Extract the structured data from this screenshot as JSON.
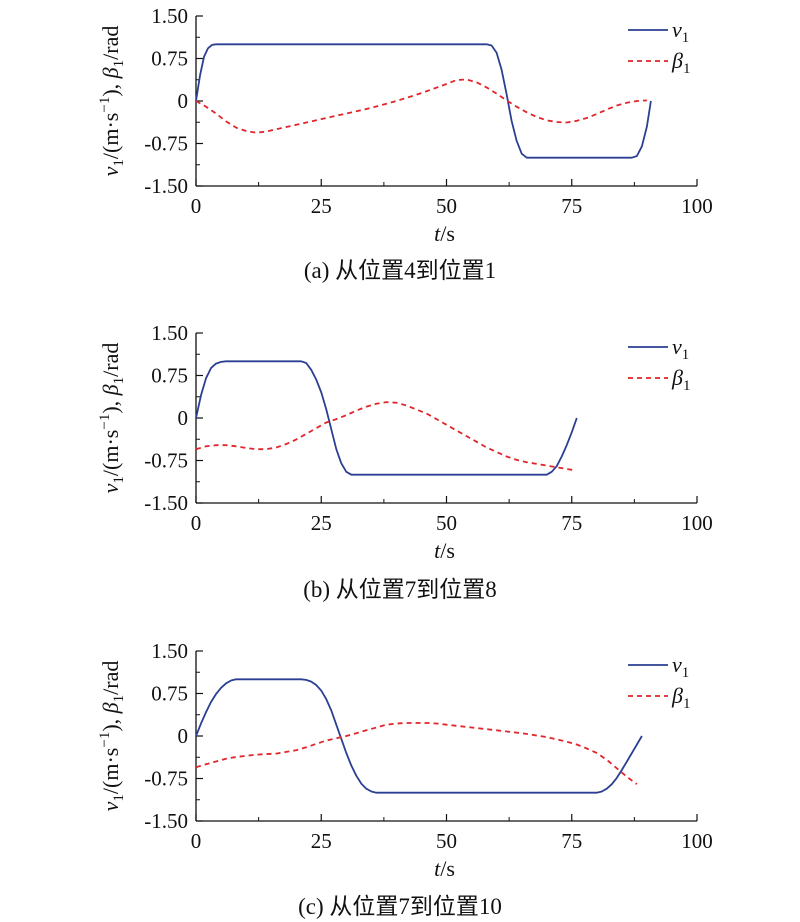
{
  "chart_data": [
    {
      "type": "line",
      "caption": "(a) 从位置4到位置1",
      "xlabel": {
        "var": "t",
        "unit": "/s"
      },
      "ylabel": {
        "v": "v",
        "v_sub": "1",
        "unit_prefix": "/(m·s",
        "unit_sup": "−1",
        "unit_suffix": "), ",
        "beta": "β",
        "beta_sub": "1",
        "beta_unit": "/rad"
      },
      "xlim": [
        0,
        100
      ],
      "ylim": [
        -1.5,
        1.5
      ],
      "xticks": [
        0,
        25,
        50,
        75,
        100
      ],
      "yticks": [
        1.5,
        0.75,
        0,
        -0.75,
        -1.5
      ],
      "ytick_labels": [
        "1.50",
        "0.75",
        "0",
        "-0.75",
        "-1.50"
      ],
      "grid": false,
      "legend_position": "top-right",
      "series": [
        {
          "symbol": "v",
          "sub": "1",
          "style": "solid",
          "color": "#2b3f93",
          "x": [
            0,
            0.8,
            1.6,
            2.4,
            3.2,
            4,
            58,
            59,
            60,
            61,
            62,
            63,
            64,
            65,
            66,
            87,
            88,
            89,
            90,
            90.8
          ],
          "y": [
            0,
            0.45,
            0.78,
            0.93,
            0.99,
            1.0,
            1.0,
            0.98,
            0.85,
            0.55,
            0.12,
            -0.35,
            -0.7,
            -0.93,
            -1.0,
            -1.0,
            -0.97,
            -0.8,
            -0.45,
            0
          ]
        },
        {
          "symbol": "β",
          "sub": "1",
          "style": "dashed",
          "color": "#e0262a",
          "x": [
            0,
            2,
            4,
            6,
            8,
            10,
            12,
            14,
            16,
            20,
            25,
            30,
            35,
            40,
            45,
            50,
            52,
            54,
            56,
            58,
            60,
            62,
            64,
            66,
            68,
            70,
            72,
            74,
            76,
            78,
            80,
            82,
            84,
            86,
            88,
            90
          ],
          "y": [
            0,
            -0.1,
            -0.22,
            -0.36,
            -0.47,
            -0.53,
            -0.56,
            -0.54,
            -0.5,
            -0.42,
            -0.32,
            -0.22,
            -0.12,
            0.0,
            0.14,
            0.3,
            0.37,
            0.38,
            0.33,
            0.24,
            0.13,
            0.01,
            -0.1,
            -0.2,
            -0.28,
            -0.34,
            -0.37,
            -0.38,
            -0.35,
            -0.3,
            -0.23,
            -0.15,
            -0.08,
            -0.03,
            0.0,
            0.01
          ]
        }
      ]
    },
    {
      "type": "line",
      "caption": "(b) 从位置7到位置8",
      "xlabel": {
        "var": "t",
        "unit": "/s"
      },
      "ylabel": {
        "v": "v",
        "v_sub": "1",
        "unit_prefix": "/(m·s",
        "unit_sup": "−1",
        "unit_suffix": "), ",
        "beta": "β",
        "beta_sub": "1",
        "beta_unit": "/rad"
      },
      "xlim": [
        0,
        100
      ],
      "ylim": [
        -1.5,
        1.5
      ],
      "xticks": [
        0,
        25,
        50,
        75,
        100
      ],
      "yticks": [
        1.5,
        0.75,
        0,
        -0.75,
        -1.5
      ],
      "ytick_labels": [
        "1.50",
        "0.75",
        "0",
        "-0.75",
        "-1.50"
      ],
      "grid": false,
      "legend_position": "top-right",
      "series": [
        {
          "symbol": "v",
          "sub": "1",
          "style": "solid",
          "color": "#2b3f93",
          "x": [
            0,
            1,
            2,
            3,
            4,
            5,
            6,
            21,
            22,
            23,
            24,
            25,
            26,
            27,
            28,
            29,
            30,
            31,
            70,
            71,
            72,
            73,
            74,
            75,
            76
          ],
          "y": [
            0,
            0.4,
            0.7,
            0.88,
            0.96,
            0.99,
            1.0,
            1.0,
            0.97,
            0.85,
            0.68,
            0.45,
            0.15,
            -0.2,
            -0.55,
            -0.8,
            -0.95,
            -1.0,
            -1.0,
            -0.95,
            -0.85,
            -0.68,
            -0.48,
            -0.25,
            0
          ]
        },
        {
          "symbol": "β",
          "sub": "1",
          "style": "dashed",
          "color": "#e0262a",
          "x": [
            0,
            2,
            4,
            6,
            8,
            10,
            12,
            14,
            16,
            18,
            20,
            22,
            24,
            26,
            28,
            30,
            32,
            34,
            36,
            38,
            40,
            42,
            44,
            46,
            48,
            50,
            52,
            54,
            56,
            58,
            60,
            62,
            64,
            66,
            68,
            70,
            72,
            74,
            75.5
          ],
          "y": [
            -0.55,
            -0.5,
            -0.48,
            -0.48,
            -0.5,
            -0.53,
            -0.55,
            -0.55,
            -0.52,
            -0.46,
            -0.38,
            -0.28,
            -0.18,
            -0.08,
            -0.02,
            0.05,
            0.13,
            0.2,
            0.25,
            0.28,
            0.27,
            0.22,
            0.15,
            0.08,
            -0.02,
            -0.12,
            -0.22,
            -0.32,
            -0.42,
            -0.52,
            -0.6,
            -0.68,
            -0.74,
            -0.78,
            -0.81,
            -0.84,
            -0.87,
            -0.9,
            -0.92
          ]
        }
      ]
    },
    {
      "type": "line",
      "caption": "(c) 从位置7到位置10",
      "xlabel": {
        "var": "t",
        "unit": "/s"
      },
      "ylabel": {
        "v": "v",
        "v_sub": "1",
        "unit_prefix": "/(m·s",
        "unit_sup": "−1",
        "unit_suffix": "), ",
        "beta": "β",
        "beta_sub": "1",
        "beta_unit": "/rad"
      },
      "xlim": [
        0,
        100
      ],
      "ylim": [
        -1.5,
        1.5
      ],
      "xticks": [
        0,
        25,
        50,
        75,
        100
      ],
      "yticks": [
        1.5,
        0.75,
        0,
        -0.75,
        -1.5
      ],
      "ytick_labels": [
        "1.50",
        "0.75",
        "0",
        "-0.75",
        "-1.50"
      ],
      "grid": false,
      "legend_position": "top-right",
      "series": [
        {
          "symbol": "v",
          "sub": "1",
          "style": "solid",
          "color": "#2b3f93",
          "x": [
            0,
            1,
            2,
            3,
            4,
            5,
            6,
            7,
            8,
            21,
            22,
            23,
            24,
            25,
            26,
            27,
            28,
            29,
            30,
            31,
            32,
            33,
            34,
            35,
            36,
            80,
            81,
            82,
            83,
            84,
            85,
            86,
            87,
            88,
            89
          ],
          "y": [
            0,
            0.22,
            0.42,
            0.6,
            0.74,
            0.85,
            0.93,
            0.98,
            1.0,
            1.0,
            0.99,
            0.96,
            0.9,
            0.8,
            0.65,
            0.45,
            0.2,
            -0.05,
            -0.3,
            -0.52,
            -0.7,
            -0.84,
            -0.93,
            -0.98,
            -1.0,
            -1.0,
            -0.98,
            -0.93,
            -0.85,
            -0.74,
            -0.6,
            -0.45,
            -0.3,
            -0.15,
            0
          ]
        },
        {
          "symbol": "β",
          "sub": "1",
          "style": "dashed",
          "color": "#e0262a",
          "x": [
            0,
            2,
            4,
            6,
            8,
            10,
            12,
            14,
            16,
            18,
            20,
            22,
            24,
            26,
            28,
            30,
            32,
            34,
            36,
            38,
            40,
            42,
            44,
            46,
            48,
            50,
            55,
            60,
            65,
            70,
            72,
            74,
            76,
            78,
            80,
            82,
            84,
            86,
            88
          ],
          "y": [
            -0.55,
            -0.5,
            -0.45,
            -0.4,
            -0.37,
            -0.35,
            -0.33,
            -0.32,
            -0.31,
            -0.28,
            -0.25,
            -0.2,
            -0.14,
            -0.08,
            -0.04,
            0.0,
            0.05,
            0.1,
            0.15,
            0.2,
            0.22,
            0.23,
            0.23,
            0.23,
            0.22,
            0.2,
            0.15,
            0.1,
            0.05,
            -0.02,
            -0.06,
            -0.1,
            -0.15,
            -0.22,
            -0.3,
            -0.42,
            -0.57,
            -0.72,
            -0.85
          ]
        }
      ]
    }
  ]
}
